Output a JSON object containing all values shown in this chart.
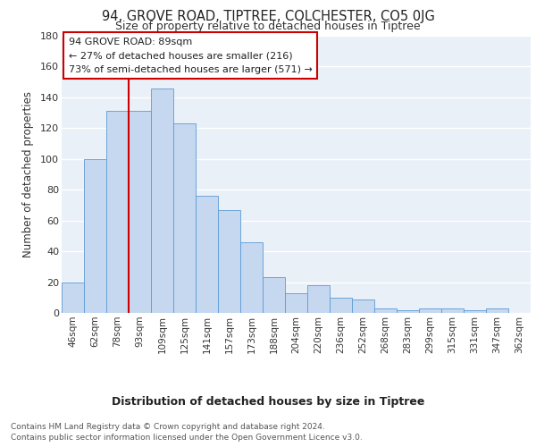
{
  "title1": "94, GROVE ROAD, TIPTREE, COLCHESTER, CO5 0JG",
  "title2": "Size of property relative to detached houses in Tiptree",
  "xlabel": "Distribution of detached houses by size in Tiptree",
  "ylabel": "Number of detached properties",
  "categories": [
    "46sqm",
    "62sqm",
    "78sqm",
    "93sqm",
    "109sqm",
    "125sqm",
    "141sqm",
    "157sqm",
    "173sqm",
    "188sqm",
    "204sqm",
    "220sqm",
    "236sqm",
    "252sqm",
    "268sqm",
    "283sqm",
    "299sqm",
    "315sqm",
    "331sqm",
    "347sqm",
    "362sqm"
  ],
  "values": [
    20,
    100,
    131,
    131,
    146,
    123,
    76,
    67,
    46,
    23,
    13,
    18,
    10,
    9,
    3,
    2,
    3,
    3,
    2,
    3,
    0
  ],
  "bar_color": "#c5d8f0",
  "bar_edge_color": "#5b9bd5",
  "vline_color": "#cc0000",
  "annotation_line1": "94 GROVE ROAD: 89sqm",
  "annotation_line2": "← 27% of detached houses are smaller (216)",
  "annotation_line3": "73% of semi-detached houses are larger (571) →",
  "annotation_box_color": "#ffffff",
  "annotation_box_edge": "#cc0000",
  "ylim": [
    0,
    180
  ],
  "yticks": [
    0,
    20,
    40,
    60,
    80,
    100,
    120,
    140,
    160,
    180
  ],
  "footer1": "Contains HM Land Registry data © Crown copyright and database right 2024.",
  "footer2": "Contains public sector information licensed under the Open Government Licence v3.0.",
  "bg_color": "#eaf0f8",
  "grid_color": "#ffffff"
}
